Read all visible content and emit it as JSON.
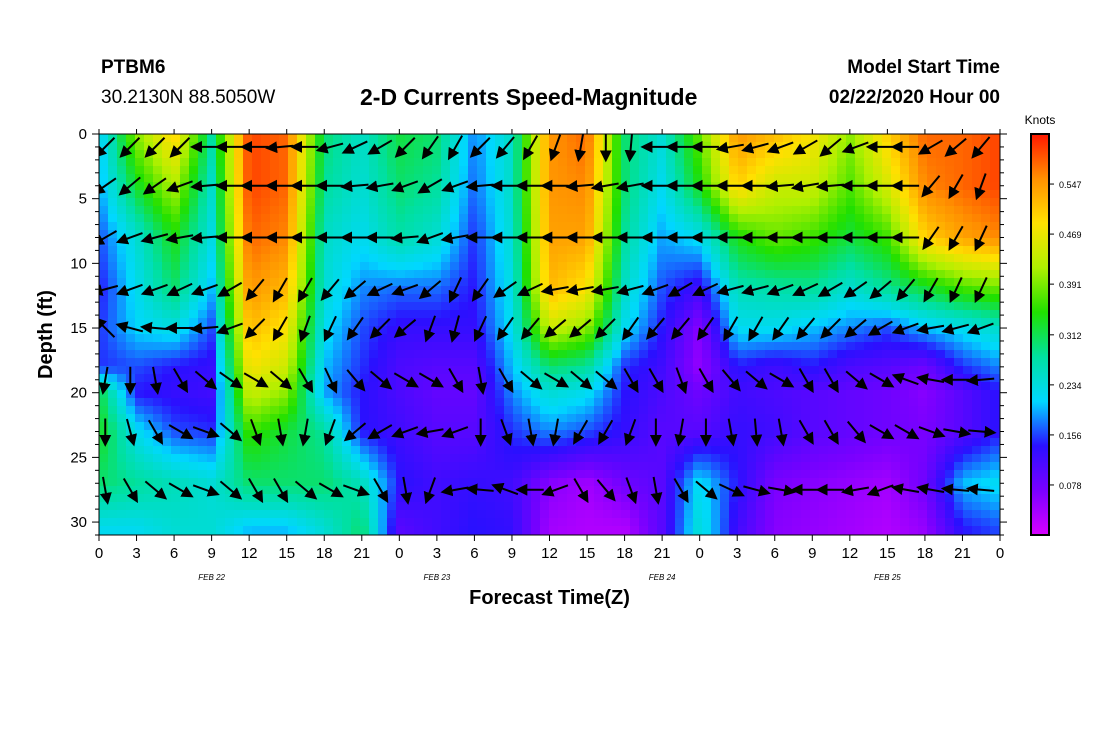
{
  "header": {
    "station_id": "PTBM6",
    "coordinates": "30.2130N 88.5050W",
    "title": "2-D Currents Speed-Magnitude",
    "model_start_label": "Model Start Time",
    "model_start_time": "02/22/2020 Hour 00"
  },
  "chart_data": {
    "type": "heatmap",
    "title": "2-D Currents Speed-Magnitude",
    "xlabel": "Forecast Time(Z)",
    "ylabel": "Depth (ft)",
    "x_range_hours": [
      0,
      72
    ],
    "ylim": [
      0,
      31
    ],
    "y_inverted": true,
    "x_ticks": [
      {
        "hour": 0,
        "label": "0"
      },
      {
        "hour": 3,
        "label": "3"
      },
      {
        "hour": 6,
        "label": "6"
      },
      {
        "hour": 9,
        "label": "9"
      },
      {
        "hour": 12,
        "label": "12"
      },
      {
        "hour": 15,
        "label": "15"
      },
      {
        "hour": 18,
        "label": "18"
      },
      {
        "hour": 21,
        "label": "21"
      },
      {
        "hour": 24,
        "label": "0"
      },
      {
        "hour": 27,
        "label": "3"
      },
      {
        "hour": 30,
        "label": "6"
      },
      {
        "hour": 33,
        "label": "9"
      },
      {
        "hour": 36,
        "label": "12"
      },
      {
        "hour": 39,
        "label": "15"
      },
      {
        "hour": 42,
        "label": "18"
      },
      {
        "hour": 45,
        "label": "21"
      },
      {
        "hour": 48,
        "label": "0"
      },
      {
        "hour": 51,
        "label": "3"
      },
      {
        "hour": 54,
        "label": "6"
      },
      {
        "hour": 57,
        "label": "9"
      },
      {
        "hour": 60,
        "label": "12"
      },
      {
        "hour": 63,
        "label": "15"
      },
      {
        "hour": 66,
        "label": "18"
      },
      {
        "hour": 69,
        "label": "21"
      },
      {
        "hour": 72,
        "label": "0"
      }
    ],
    "date_labels": [
      {
        "hour": 9,
        "label": "FEB 22"
      },
      {
        "hour": 27,
        "label": "FEB 23"
      },
      {
        "hour": 45,
        "label": "FEB 24"
      },
      {
        "hour": 63,
        "label": "FEB 25"
      }
    ],
    "y_ticks": [
      {
        "depth": 0,
        "label": "0"
      },
      {
        "depth": 5,
        "label": "5"
      },
      {
        "depth": 10,
        "label": "10"
      },
      {
        "depth": 15,
        "label": "15"
      },
      {
        "depth": 20,
        "label": "20"
      },
      {
        "depth": 25,
        "label": "25"
      },
      {
        "depth": 30,
        "label": "30"
      }
    ],
    "colorbar": {
      "unit_label": "Knots",
      "range": [
        0,
        0.625
      ],
      "ticks": [
        "0.547",
        "0.469",
        "0.391",
        "0.312",
        "0.234",
        "0.156",
        "0.078"
      ],
      "colors": [
        "#d800ff",
        "#7a00ff",
        "#2a10ff",
        "#00d8ff",
        "#00e0a0",
        "#20e000",
        "#b0f000",
        "#ffe000",
        "#ff9000",
        "#ff1800"
      ]
    },
    "depths_ft": [
      0,
      4,
      8,
      12,
      15,
      18,
      20,
      23,
      27,
      30.5
    ],
    "speed_knots": [
      [
        0.2,
        0.4,
        0.5,
        0.28,
        0.6,
        0.58,
        0.3,
        0.25,
        0.32,
        0.3,
        0.18,
        0.25,
        0.55,
        0.58,
        0.3,
        0.24,
        0.38,
        0.55,
        0.52,
        0.48,
        0.4,
        0.5,
        0.58,
        0.58,
        0.6
      ],
      [
        0.19,
        0.33,
        0.42,
        0.25,
        0.6,
        0.58,
        0.28,
        0.24,
        0.3,
        0.28,
        0.17,
        0.25,
        0.55,
        0.56,
        0.3,
        0.22,
        0.34,
        0.5,
        0.44,
        0.44,
        0.37,
        0.45,
        0.56,
        0.58,
        0.6
      ],
      [
        0.16,
        0.24,
        0.34,
        0.23,
        0.58,
        0.56,
        0.25,
        0.22,
        0.27,
        0.24,
        0.15,
        0.24,
        0.54,
        0.54,
        0.28,
        0.19,
        0.22,
        0.34,
        0.38,
        0.36,
        0.32,
        0.36,
        0.5,
        0.54,
        0.56
      ],
      [
        0.14,
        0.22,
        0.3,
        0.2,
        0.55,
        0.52,
        0.24,
        0.18,
        0.17,
        0.17,
        0.14,
        0.23,
        0.52,
        0.48,
        0.25,
        0.16,
        0.12,
        0.26,
        0.27,
        0.28,
        0.24,
        0.28,
        0.32,
        0.36,
        0.38
      ],
      [
        0.15,
        0.21,
        0.23,
        0.16,
        0.52,
        0.48,
        0.22,
        0.16,
        0.13,
        0.13,
        0.13,
        0.22,
        0.44,
        0.4,
        0.22,
        0.14,
        0.06,
        0.22,
        0.22,
        0.2,
        0.18,
        0.16,
        0.2,
        0.22,
        0.25
      ],
      [
        0.15,
        0.16,
        0.14,
        0.13,
        0.48,
        0.44,
        0.2,
        0.15,
        0.11,
        0.1,
        0.1,
        0.2,
        0.3,
        0.28,
        0.15,
        0.12,
        0.05,
        0.14,
        0.12,
        0.14,
        0.11,
        0.1,
        0.08,
        0.15,
        0.18
      ],
      [
        0.32,
        0.14,
        0.13,
        0.12,
        0.44,
        0.4,
        0.19,
        0.14,
        0.11,
        0.09,
        0.09,
        0.18,
        0.24,
        0.22,
        0.14,
        0.11,
        0.08,
        0.12,
        0.11,
        0.1,
        0.09,
        0.08,
        0.06,
        0.1,
        0.14
      ],
      [
        0.34,
        0.22,
        0.16,
        0.15,
        0.36,
        0.32,
        0.28,
        0.14,
        0.12,
        0.1,
        0.1,
        0.15,
        0.18,
        0.16,
        0.13,
        0.1,
        0.1,
        0.13,
        0.12,
        0.1,
        0.09,
        0.08,
        0.07,
        0.1,
        0.14
      ],
      [
        0.3,
        0.28,
        0.26,
        0.24,
        0.3,
        0.3,
        0.3,
        0.26,
        0.14,
        0.12,
        0.13,
        0.12,
        0.06,
        0.04,
        0.08,
        0.1,
        0.22,
        0.14,
        0.07,
        0.06,
        0.05,
        0.04,
        0.08,
        0.2,
        0.22
      ],
      [
        0.22,
        0.22,
        0.24,
        0.24,
        0.2,
        0.2,
        0.24,
        0.3,
        0.1,
        0.12,
        0.14,
        0.13,
        0.04,
        0.03,
        0.03,
        0.1,
        0.24,
        0.12,
        0.06,
        0.05,
        0.04,
        0.03,
        0.05,
        0.14,
        0.16
      ]
    ],
    "vector_rows_depth_ft": [
      1,
      4,
      8,
      12,
      15,
      19,
      23,
      27.5
    ],
    "vector_columns_hours": [
      0.5,
      2.5,
      4.5,
      6.5,
      8.5,
      10.5,
      12.5,
      14.5,
      16.5,
      18.5,
      20.5,
      22.5,
      24.5,
      26.5,
      28.5,
      30.5,
      32.5,
      34.5,
      36.5,
      38.5,
      40.5,
      42.5,
      44.5,
      46.5,
      48.5,
      50.5,
      52.5,
      54.5,
      56.5,
      58.5,
      60.5,
      62.5,
      64.5,
      66.5,
      68.5,
      70.5
    ],
    "vector_direction_deg_by_row": [
      [
        225,
        225,
        225,
        225,
        180,
        180,
        180,
        185,
        180,
        195,
        205,
        210,
        225,
        235,
        240,
        225,
        230,
        240,
        250,
        260,
        270,
        265,
        180,
        180,
        180,
        190,
        195,
        200,
        210,
        220,
        200,
        180,
        180,
        210,
        220,
        230
      ],
      [
        215,
        220,
        215,
        200,
        185,
        180,
        180,
        180,
        180,
        180,
        185,
        190,
        200,
        210,
        200,
        185,
        180,
        180,
        180,
        185,
        190,
        190,
        180,
        180,
        180,
        180,
        180,
        185,
        190,
        185,
        180,
        180,
        180,
        230,
        240,
        250
      ],
      [
        210,
        200,
        195,
        190,
        185,
        180,
        180,
        180,
        180,
        180,
        180,
        180,
        185,
        200,
        190,
        180,
        180,
        180,
        180,
        180,
        180,
        180,
        180,
        180,
        180,
        180,
        180,
        180,
        180,
        180,
        180,
        180,
        180,
        235,
        240,
        245
      ],
      [
        195,
        200,
        200,
        205,
        200,
        210,
        230,
        240,
        240,
        230,
        220,
        205,
        200,
        220,
        245,
        235,
        215,
        205,
        190,
        190,
        190,
        195,
        200,
        210,
        205,
        195,
        195,
        200,
        205,
        210,
        215,
        220,
        230,
        240,
        245,
        245
      ],
      [
        135,
        165,
        175,
        180,
        185,
        200,
        225,
        240,
        250,
        245,
        235,
        225,
        220,
        250,
        255,
        245,
        235,
        230,
        220,
        220,
        225,
        235,
        230,
        230,
        235,
        240,
        240,
        235,
        230,
        225,
        220,
        210,
        200,
        190,
        195,
        200
      ],
      [
        260,
        270,
        280,
        300,
        320,
        325,
        330,
        320,
        300,
        295,
        310,
        320,
        330,
        330,
        300,
        280,
        300,
        320,
        330,
        320,
        320,
        300,
        300,
        290,
        300,
        310,
        320,
        330,
        300,
        300,
        320,
        330,
        160,
        170,
        180,
        185
      ],
      [
        270,
        285,
        300,
        330,
        340,
        320,
        290,
        280,
        260,
        250,
        220,
        210,
        200,
        190,
        200,
        270,
        290,
        280,
        260,
        240,
        240,
        250,
        270,
        260,
        270,
        280,
        275,
        280,
        300,
        300,
        310,
        330,
        330,
        340,
        350,
        355
      ],
      [
        280,
        300,
        320,
        330,
        340,
        320,
        300,
        300,
        320,
        330,
        340,
        300,
        280,
        250,
        190,
        175,
        160,
        180,
        200,
        300,
        310,
        290,
        280,
        300,
        320,
        335,
        345,
        350,
        180,
        180,
        190,
        200,
        170,
        170,
        175,
        175
      ]
    ],
    "highest_speed_region": "upper water column near 15Z each day",
    "lowest_speed_region": "lower water column on Feb 24-25"
  }
}
